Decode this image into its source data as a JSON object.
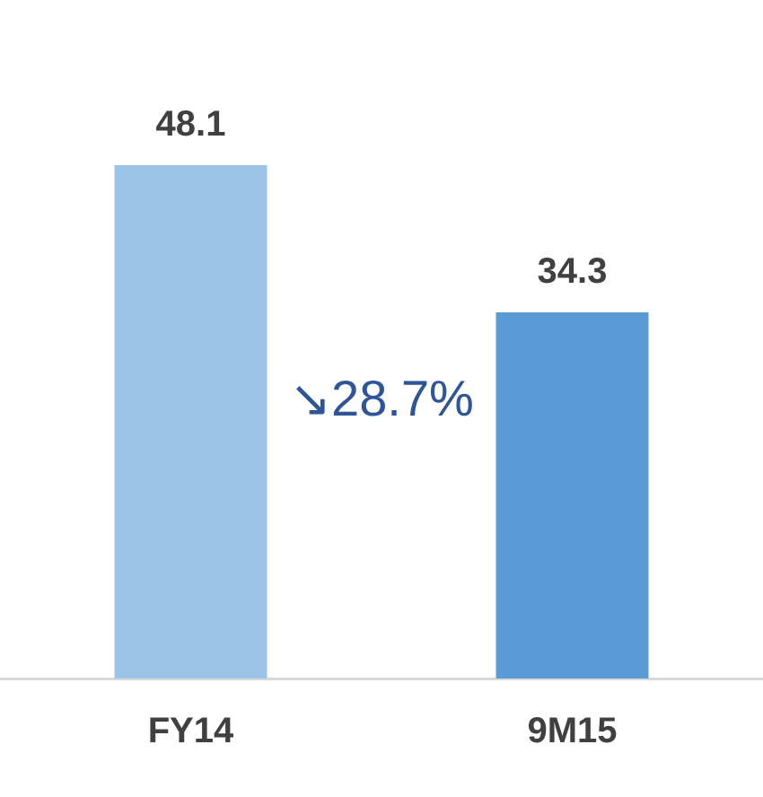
{
  "chart_data": {
    "type": "bar",
    "categories": [
      "FY14",
      "9M15"
    ],
    "values": [
      48.1,
      34.3
    ],
    "colors": [
      "#9dc3e6",
      "#5b9bd5"
    ],
    "data_labels": true,
    "grid": false,
    "legend": false,
    "tick_labels": "x",
    "annotations": [
      "↘28.7%"
    ]
  }
}
